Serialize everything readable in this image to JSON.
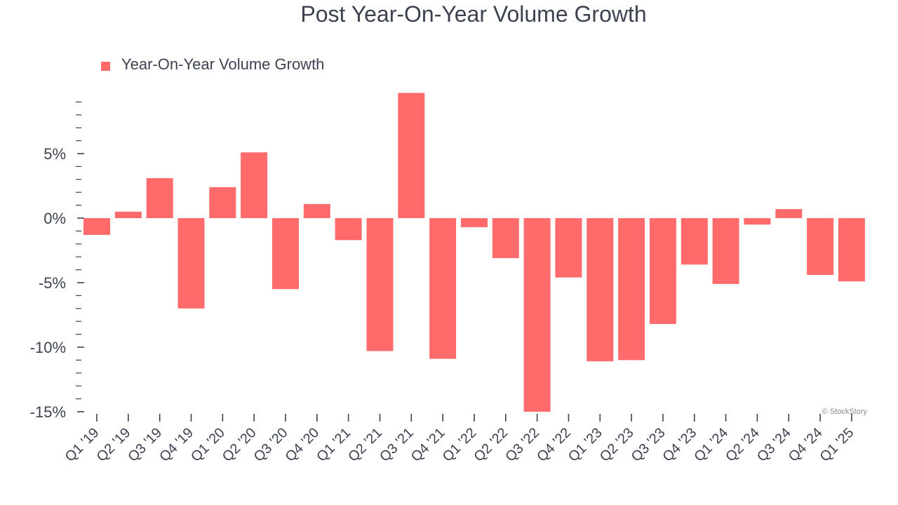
{
  "chart_data": {
    "type": "bar",
    "title": "Post Year-On-Year Volume Growth",
    "legend": {
      "position": "top-left",
      "entries": [
        "Year-On-Year Volume Growth"
      ]
    },
    "categories": [
      "Q1 '19",
      "Q2 '19",
      "Q3 '19",
      "Q4 '19",
      "Q1 '20",
      "Q2 '20",
      "Q3 '20",
      "Q4 '20",
      "Q1 '21",
      "Q2 '21",
      "Q3 '21",
      "Q4 '21",
      "Q1 '22",
      "Q2 '22",
      "Q3 '22",
      "Q4 '22",
      "Q1 '23",
      "Q2 '23",
      "Q3 '23",
      "Q4 '23",
      "Q1 '24",
      "Q2 '24",
      "Q3 '24",
      "Q4 '24",
      "Q1 '25"
    ],
    "series": [
      {
        "name": "Year-On-Year Volume Growth",
        "color": "#ff6b6b",
        "values": [
          -1.3,
          0.5,
          3.1,
          -7.0,
          2.4,
          5.1,
          -5.5,
          1.1,
          -1.7,
          -10.3,
          9.7,
          -10.9,
          -0.7,
          -3.1,
          -15.0,
          -4.6,
          -11.1,
          -11.0,
          -8.2,
          -3.6,
          -5.1,
          -0.5,
          0.7,
          -4.4,
          -4.9
        ]
      }
    ],
    "yticks": [
      5,
      0,
      -5,
      -10,
      -15
    ],
    "ytick_labels": [
      "5%",
      "0%",
      "-5%",
      "-10%",
      "-15%"
    ],
    "ylim": [
      -15,
      9.7
    ],
    "grid": false,
    "watermark": "© StockStory",
    "text_color": "#3c4250"
  }
}
